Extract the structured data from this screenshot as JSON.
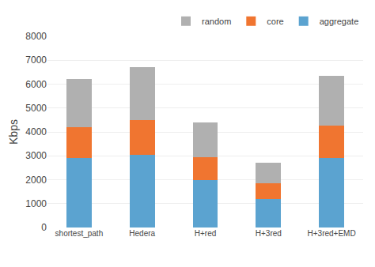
{
  "chart_data": {
    "type": "bar",
    "stacked": true,
    "categories": [
      "shortest_path",
      "Hedera",
      "H+red",
      "H+3red",
      "H+3red+EMD"
    ],
    "series": [
      {
        "name": "aggregate",
        "color": "#5ba3d0",
        "values": [
          2900,
          3050,
          2000,
          1200,
          2900
        ]
      },
      {
        "name": "core",
        "color": "#f07530",
        "values": [
          1300,
          1450,
          950,
          650,
          1350
        ]
      },
      {
        "name": "random",
        "color": "#b0b0b0",
        "values": [
          2000,
          2200,
          1450,
          850,
          2100
        ]
      }
    ],
    "ylabel": "Kbps",
    "ylim": [
      0,
      8000
    ],
    "yticks": [
      0,
      1000,
      2000,
      3000,
      4000,
      5000,
      6000,
      7000,
      8000
    ],
    "grid": true,
    "legend": "upper right"
  }
}
